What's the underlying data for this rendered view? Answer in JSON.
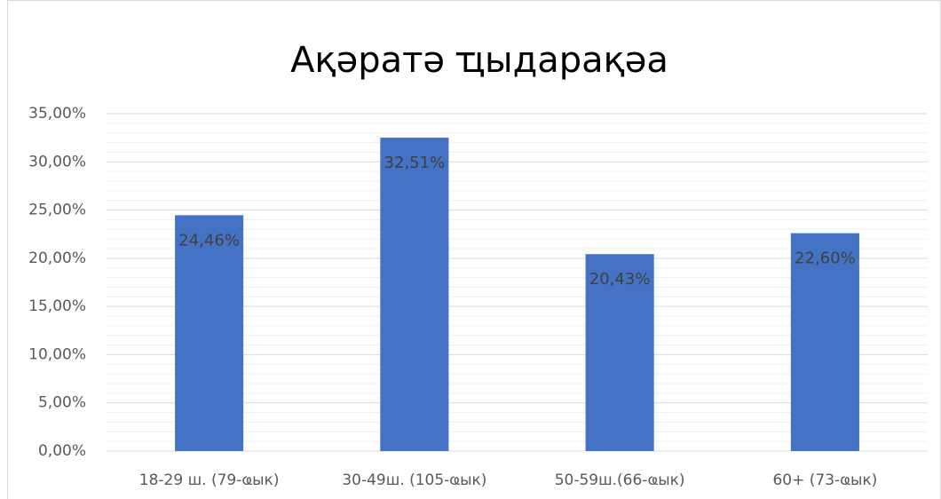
{
  "chart_data": {
    "type": "bar",
    "title": "Ақәратә ҵыдарақәа",
    "categories": [
      "18-29 ш. (79-ҩык)",
      "30-49ш. (105-ҩык)",
      "50-59ш.(66-ҩык)",
      "60+ (73-ҩык)"
    ],
    "values": [
      24.46,
      32.51,
      20.43,
      22.6
    ],
    "value_labels": [
      "24,46%",
      "32,51%",
      "20,43%",
      "22,60%"
    ],
    "color": "#4472c4",
    "ylim": [
      0,
      35
    ],
    "yticks": [
      {
        "value": 0,
        "label": "0,00%"
      },
      {
        "value": 5,
        "label": "5,00%"
      },
      {
        "value": 10,
        "label": "10,00%"
      },
      {
        "value": 15,
        "label": "15,00%"
      },
      {
        "value": 20,
        "label": "20,00%"
      },
      {
        "value": 25,
        "label": "25,00%"
      },
      {
        "value": 30,
        "label": "30,00%"
      },
      {
        "value": 35,
        "label": "35,00%"
      }
    ],
    "yminorticks": [
      1,
      2,
      3,
      4,
      6,
      7,
      8,
      9,
      11,
      12,
      13,
      14,
      16,
      17,
      18,
      19,
      21,
      22,
      23,
      24,
      26,
      27,
      28,
      29,
      31,
      32,
      33,
      34
    ],
    "grid": true
  }
}
